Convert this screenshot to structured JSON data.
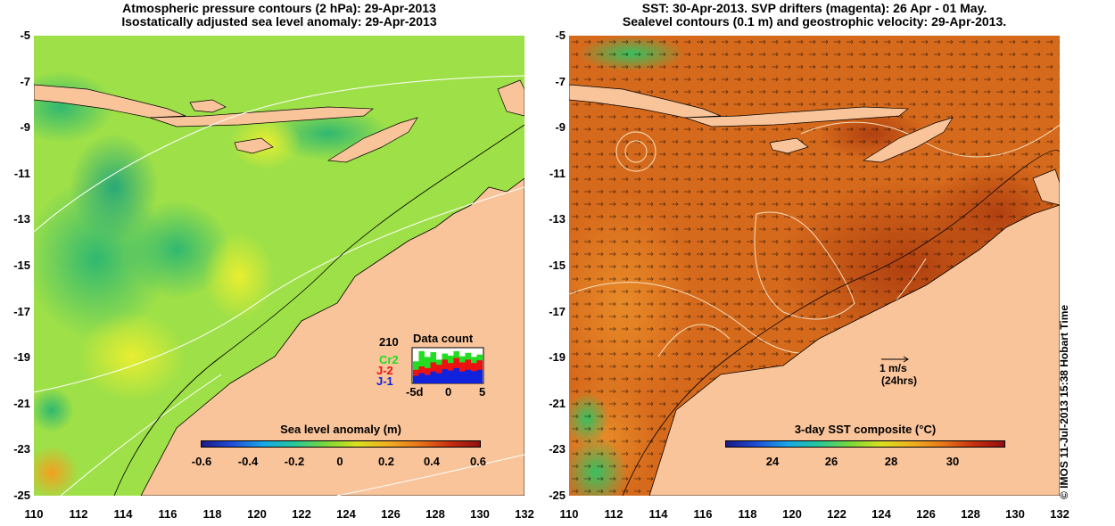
{
  "left_panel": {
    "title_line1": "Atmospheric pressure contours (2 hPa): 29-Apr-2013",
    "title_line2": "Isostatically adjusted sea level anomaly: 29-Apr-2013",
    "colorbar": {
      "title": "Sea level anomaly (m)",
      "ticks": [
        "-0.6",
        "-0.4",
        "-0.2",
        "0",
        "0.2",
        "0.4",
        "0.6"
      ]
    },
    "data_count": {
      "title": "Data count",
      "max_label": "210",
      "series": [
        {
          "name": "Cr2",
          "color": "#22dd22"
        },
        {
          "name": "J-2",
          "color": "#ee1111"
        },
        {
          "name": "J-1",
          "color": "#1122dd"
        }
      ],
      "x_ticks": [
        "-5d",
        "0",
        "5"
      ],
      "green_values": [
        0.65,
        0.95,
        0.78,
        0.92,
        0.7,
        0.88,
        0.82,
        0.95,
        0.8,
        0.9,
        0.78,
        0.85
      ],
      "red_values": [
        0.4,
        0.5,
        0.45,
        0.62,
        0.55,
        0.7,
        0.6,
        0.75,
        0.62,
        0.7,
        0.6,
        0.68
      ],
      "blue_values": [
        0.22,
        0.3,
        0.25,
        0.35,
        0.3,
        0.42,
        0.38,
        0.45,
        0.35,
        0.4,
        0.36,
        0.4
      ]
    }
  },
  "right_panel": {
    "title_line1": "SST: 30-Apr-2013. SVP drifters (magenta): 26 Apr - 01 May.",
    "title_line2": "Sealevel contours (0.1 m) and geostrophic velocity: 29-Apr-2013.",
    "colorbar": {
      "title": "3-day SST composite (°C)",
      "ticks": [
        "24",
        "26",
        "28",
        "30"
      ]
    },
    "scale_label": "1 m/s",
    "scale_sublabel": "(24hrs)"
  },
  "y_ticks": [
    "-5",
    "-7",
    "-9",
    "-11",
    "-13",
    "-15",
    "-17",
    "-19",
    "-21",
    "-23",
    "-25"
  ],
  "x_ticks": [
    "110",
    "112",
    "114",
    "116",
    "118",
    "120",
    "122",
    "124",
    "126",
    "128",
    "130",
    "132"
  ],
  "credit": "© IMOS 11-Jul-2013 15:38 Hobart Time",
  "colors": {
    "land": "#f9c49a",
    "sla_ocean": "#9ee048",
    "sst_ocean": "#d66a1c"
  }
}
